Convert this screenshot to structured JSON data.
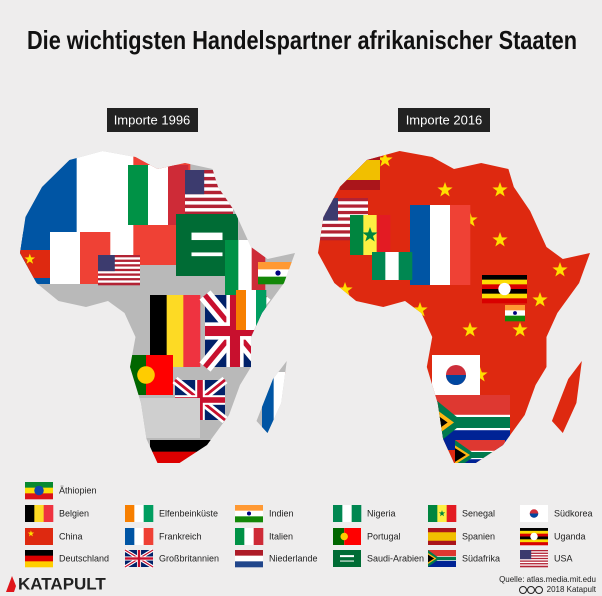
{
  "title": "Die wichtigsten Handelspartner afrikanischer Staaten",
  "panels": [
    {
      "label": "Importe 1996"
    },
    {
      "label": "Importe 2016"
    }
  ],
  "legend": [
    {
      "label": "Äthiopien"
    },
    {
      "label": "Belgien"
    },
    {
      "label": "China"
    },
    {
      "label": "Deutschland"
    },
    {
      "label": "Elfenbeinküste"
    },
    {
      "label": "Frankreich"
    },
    {
      "label": "Großbritannien"
    },
    {
      "label": "Indien"
    },
    {
      "label": "Italien"
    },
    {
      "label": "Niederlande"
    },
    {
      "label": "Nigeria"
    },
    {
      "label": "Portugal"
    },
    {
      "label": "Saudi-Arabien"
    },
    {
      "label": "Senegal"
    },
    {
      "label": "Spanien"
    },
    {
      "label": "Südafrika"
    },
    {
      "label": "Südkorea"
    },
    {
      "label": "Uganda"
    },
    {
      "label": "USA"
    }
  ],
  "footer": {
    "brand": "KATAPULT",
    "source": "Quelle: atlas.media.mit.edu",
    "license": "2018 Katapult"
  }
}
